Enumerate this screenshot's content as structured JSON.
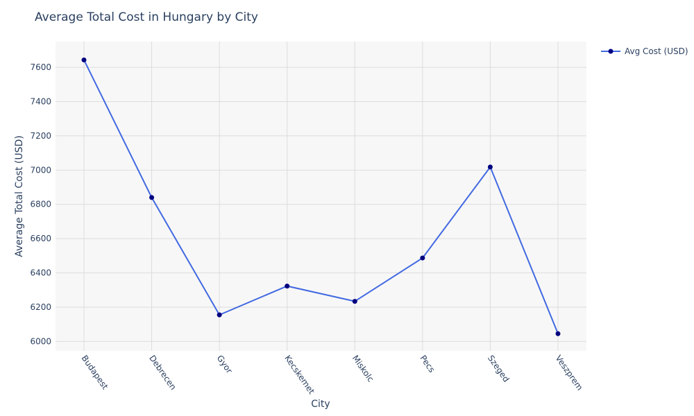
{
  "chart_data": {
    "type": "line",
    "title": "Average Total Cost in Hungary by City",
    "xlabel": "City",
    "ylabel": "Average Total Cost (USD)",
    "categories": [
      "Budapest",
      "Debrecen",
      "Gyor",
      "Kecskemet",
      "Miskolc",
      "Pecs",
      "Szeged",
      "Veszprem"
    ],
    "series": [
      {
        "name": "Avg Cost (USD)",
        "values": [
          7643,
          6840,
          6155,
          6323,
          6234,
          6487,
          7018,
          6045
        ]
      }
    ],
    "ylim": [
      5945,
      7750
    ],
    "yticks": [
      6000,
      6200,
      6400,
      6600,
      6800,
      7000,
      7200,
      7400,
      7600
    ],
    "grid": true,
    "legend_position": "top-right",
    "colors": {
      "line": "#4169e1",
      "marker": "#000080",
      "plot_bg": "#f7f7f7",
      "grid": "#dcdcdc"
    }
  }
}
